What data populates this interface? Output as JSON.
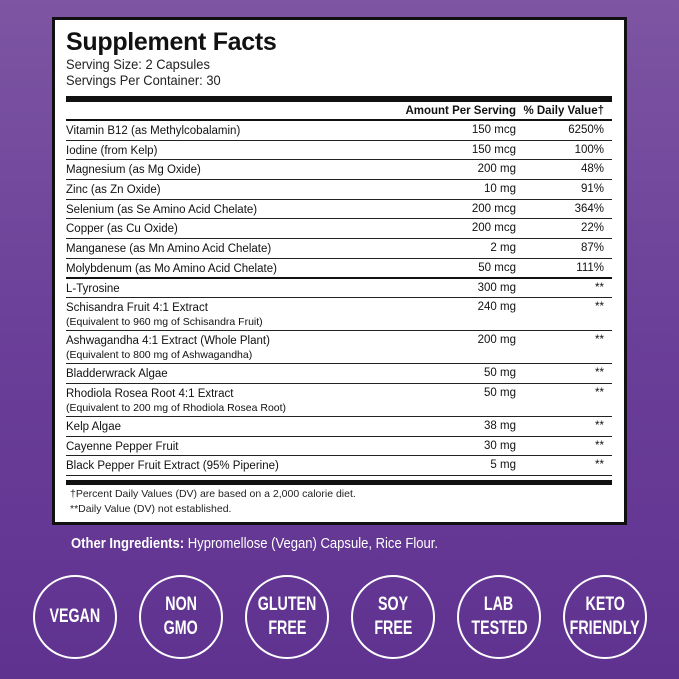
{
  "label": {
    "title": "Supplement Facts",
    "serving_size": "Serving Size: 2 Capsules",
    "servings_per_container": "Servings Per Container: 30",
    "headers": {
      "amount": "Amount Per Serving",
      "dv": "% Daily Value†"
    },
    "rows": [
      {
        "name": "Vitamin B12 (as Methylcobalamin)",
        "amount": "150 mcg",
        "dv": "6250%"
      },
      {
        "name": "Iodine (from Kelp)",
        "amount": "150 mcg",
        "dv": "100%"
      },
      {
        "name": "Magnesium (as Mg Oxide)",
        "amount": "200 mg",
        "dv": "48%"
      },
      {
        "name": "Zinc (as Zn Oxide)",
        "amount": "10 mg",
        "dv": "91%"
      },
      {
        "name": "Selenium (as Se Amino Acid Chelate)",
        "amount": "200 mcg",
        "dv": "364%"
      },
      {
        "name": "Copper (as Cu Oxide)",
        "amount": "200 mcg",
        "dv": "22%"
      },
      {
        "name": "Manganese (as Mn Amino Acid Chelate)",
        "amount": "2 mg",
        "dv": "87%"
      },
      {
        "name": "Molybdenum (as Mo Amino Acid Chelate)",
        "amount": "50 mcg",
        "dv": "111%"
      },
      {
        "name": "L-Tyrosine",
        "amount": "300 mg",
        "dv": "**"
      },
      {
        "name": "Schisandra Fruit 4:1 Extract",
        "sub": "(Equivalent to 960 mg of Schisandra Fruit)",
        "amount": "240 mg",
        "dv": "**"
      },
      {
        "name": "Ashwagandha 4:1 Extract (Whole Plant)",
        "sub": "(Equivalent to 800 mg of Ashwagandha)",
        "amount": "200 mg",
        "dv": "**"
      },
      {
        "name": "Bladderwrack Algae",
        "amount": "50 mg",
        "dv": "**"
      },
      {
        "name": "Rhodiola Rosea Root 4:1 Extract",
        "sub": "(Equivalent to 200 mg of Rhodiola Rosea Root)",
        "amount": "50 mg",
        "dv": "**"
      },
      {
        "name": "Kelp Algae",
        "amount": "38 mg",
        "dv": "**"
      },
      {
        "name": "Cayenne Pepper Fruit",
        "amount": "30 mg",
        "dv": "**"
      },
      {
        "name": "Black Pepper Fruit Extract (95% Piperine)",
        "amount": "5 mg",
        "dv": "**"
      }
    ],
    "footnotes": [
      "†Percent Daily Values (DV) are based on a 2,000 calorie diet.",
      "**Daily Value (DV) not established."
    ]
  },
  "other_ingredients": {
    "label": "Other Ingredients:",
    "text": " Hypromellose (Vegan) Capsule, Rice Flour."
  },
  "badges": [
    [
      "VEGAN"
    ],
    [
      "NON",
      "GMO"
    ],
    [
      "GLUTEN",
      "FREE"
    ],
    [
      "SOY",
      "FREE"
    ],
    [
      "LAB",
      "TESTED"
    ],
    [
      "KETO",
      "FRIENDLY"
    ]
  ]
}
